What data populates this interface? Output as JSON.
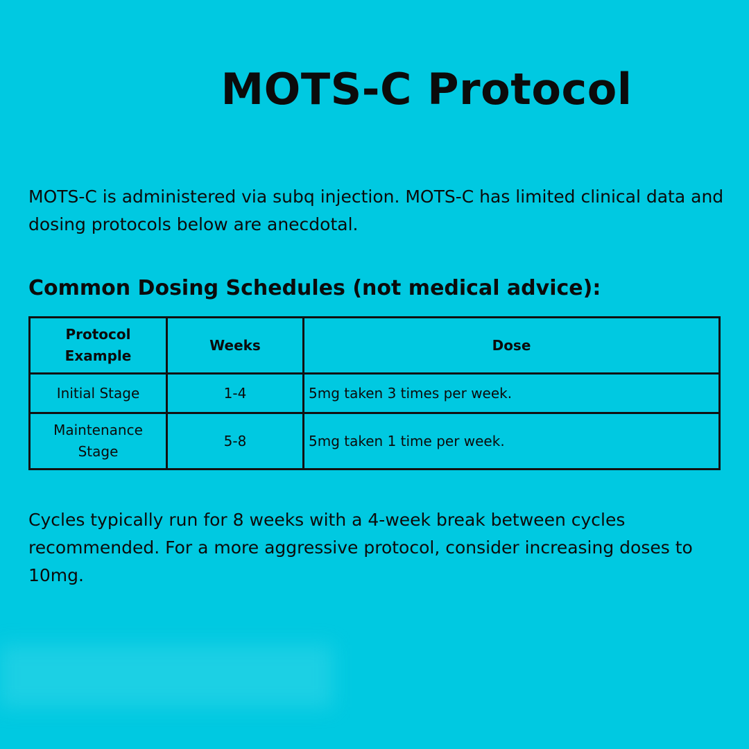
{
  "title": "MOTS-C Protocol",
  "intro": "MOTS-C is administered via subq injection.  MOTS-C has limited clinical data and dosing protocols below are anecdotal.",
  "subheading": "Common Dosing Schedules (not medical advice):",
  "table": {
    "headers": [
      "Protocol\nExample",
      "Weeks",
      "Dose"
    ],
    "rows": [
      [
        "Initial Stage",
        "1-4",
        "5mg taken 3 times per week."
      ],
      [
        "Maintenance\nStage",
        "5-8",
        "5mg taken 1 time per week."
      ]
    ]
  },
  "outro": "Cycles typically run for 8 weeks with a 4-week break between cycles recommended.  For a more aggressive protocol, consider increasing doses to 10mg.",
  "colors": {
    "background": "#00c9e1",
    "text": "#0b0b0b"
  }
}
